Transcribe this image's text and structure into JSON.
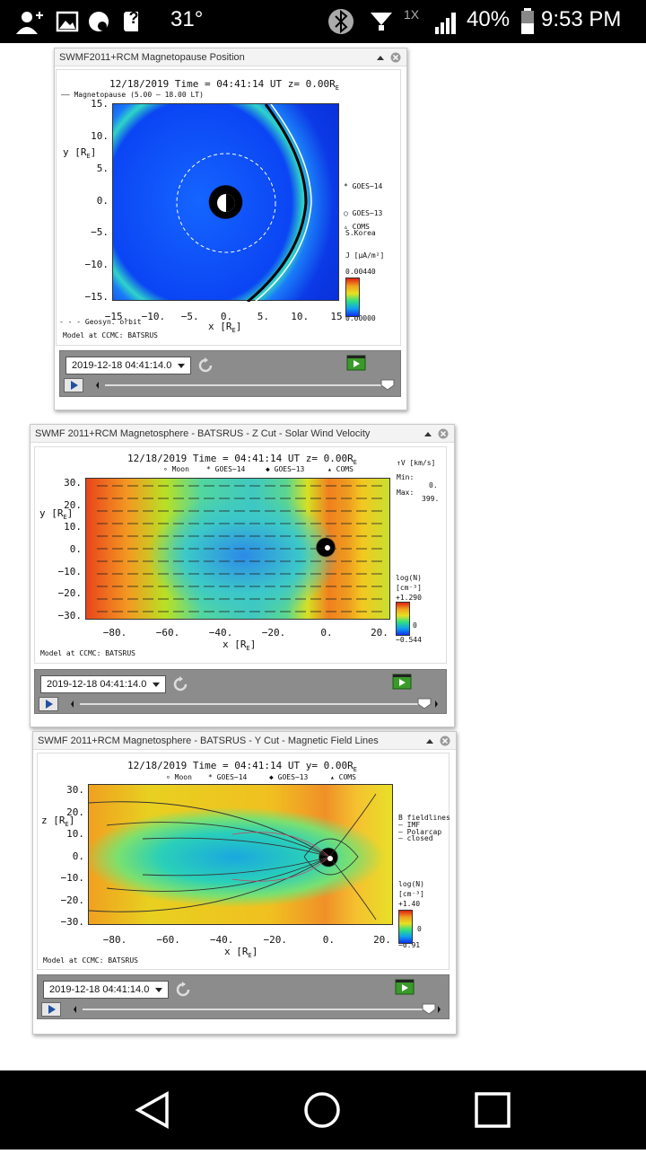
{
  "status": {
    "temperature": "31°",
    "help": "?",
    "network": "1X",
    "battery": "40%",
    "time": "9:53 PM"
  },
  "panels": [
    {
      "title": "SWMF2011+RCM Magnetopause Position",
      "header": {
        "pre": "12/18/2019 Time = 04:41:14 UT z= 0.00R",
        "sub": "E"
      },
      "y_label": {
        "pre": "y [R",
        "sub": "E",
        "post": "]"
      },
      "x_label": {
        "pre": "x [R",
        "sub": "E",
        "post": "]"
      },
      "yticks": [
        "15.",
        "10.",
        "5.",
        "0.",
        "−5.",
        "−10.",
        "−15."
      ],
      "xticks": [
        "−15.",
        "−10.",
        "−5.",
        "0.",
        "5.",
        "10.",
        "15"
      ],
      "side": [
        "—— Magnetopause (5.00 – 18.00 LT)",
        "* GOES−14",
        "○ GOES−13",
        "▵ COMS",
        "S.Korea",
        "J [µA/m²]",
        "0.00440",
        "0.00000",
        "- - - Geosyn. orbit"
      ],
      "footer": "Model at CCMC: BATSRUS",
      "date": "2019-12-18 04:41:14.0"
    },
    {
      "title": "SWMF 2011+RCM Magnetosphere - BATSRUS - Z Cut - Solar Wind Velocity",
      "header": {
        "pre": "12/18/2019 Time = 04:41:14 UT z= 0.00R",
        "sub": "E"
      },
      "y_label": {
        "pre": "y [R",
        "sub": "E",
        "post": "]"
      },
      "x_label": {
        "pre": "x [R",
        "sub": "E",
        "post": "]"
      },
      "yticks": [
        "30.",
        "20.",
        "10.",
        "0.",
        "−10.",
        "−20.",
        "−30."
      ],
      "xticks": [
        "−80.",
        "−60.",
        "−40.",
        "−20.",
        "0.",
        "20."
      ],
      "side": [
        "∘ Moon",
        "* GOES−14",
        "◆ GOES−13",
        "▴ COMS",
        "↑V [km/s]",
        "Min:",
        "0.",
        "Max:",
        "399.",
        "log(N)",
        "[cm⁻³]",
        "+1.290",
        "0",
        "−0.544"
      ],
      "footer": "Model at CCMC: BATSRUS",
      "date": "2019-12-18 04:41:14.0"
    },
    {
      "title": "SWMF 2011+RCM Magnetosphere - BATSRUS - Y Cut - Magnetic Field Lines",
      "header": {
        "pre": "12/18/2019 Time = 04:41:14 UT y= 0.00R",
        "sub": "E"
      },
      "y_label": {
        "pre": "z [R",
        "sub": "E",
        "post": "]"
      },
      "x_label": {
        "pre": "x [R",
        "sub": "E",
        "post": "]"
      },
      "yticks": [
        "30.",
        "20.",
        "10.",
        "0.",
        "−10.",
        "−20.",
        "−30."
      ],
      "xticks": [
        "−80.",
        "−60.",
        "−40.",
        "−20.",
        "0.",
        "20."
      ],
      "side": [
        "∘ Moon",
        "* GOES−14",
        "◆ GOES−13",
        "▴ COMS",
        "B fieldlines",
        "— IMF",
        "— Polarcap",
        "— closed",
        "log(N)",
        "[cm⁻³]",
        "+1.40",
        "0",
        "−0.91"
      ],
      "footer": "Model at CCMC: BATSRUS",
      "date": "2019-12-18 04:41:14.0"
    }
  ]
}
